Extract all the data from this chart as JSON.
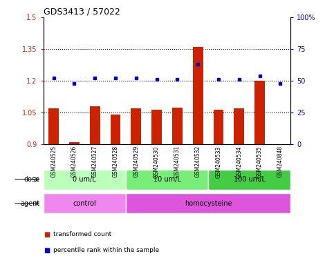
{
  "title": "GDS3413 / 57022",
  "samples": [
    "GSM240525",
    "GSM240526",
    "GSM240527",
    "GSM240528",
    "GSM240529",
    "GSM240530",
    "GSM240531",
    "GSM240532",
    "GSM240533",
    "GSM240534",
    "GSM240535",
    "GSM240848"
  ],
  "red_values": [
    1.07,
    0.91,
    1.08,
    1.04,
    1.07,
    1.065,
    1.075,
    1.36,
    1.065,
    1.07,
    1.2,
    0.9
  ],
  "blue_values": [
    52,
    48,
    52,
    52,
    52,
    51,
    51,
    63,
    51,
    51,
    54,
    48
  ],
  "ylim_left": [
    0.9,
    1.5
  ],
  "ylim_right": [
    0,
    100
  ],
  "yticks_left": [
    0.9,
    1.05,
    1.2,
    1.35,
    1.5
  ],
  "yticks_right": [
    0,
    25,
    50,
    75,
    100
  ],
  "ytick_labels_left": [
    "0.9",
    "1.05",
    "1.2",
    "1.35",
    "1.5"
  ],
  "ytick_labels_right": [
    "0",
    "25",
    "50",
    "75",
    "100%"
  ],
  "hlines": [
    1.05,
    1.2,
    1.35
  ],
  "bar_color": "#cc2200",
  "dot_color": "#0000cc",
  "dose_groups": [
    {
      "text": "0 um/L",
      "start": 0,
      "end": 4,
      "color": "#bbffbb"
    },
    {
      "text": "10 um/L",
      "start": 4,
      "end": 8,
      "color": "#77ee77"
    },
    {
      "text": "100 um/L",
      "start": 8,
      "end": 12,
      "color": "#44cc44"
    }
  ],
  "agent_groups": [
    {
      "text": "control",
      "start": 0,
      "end": 4,
      "color": "#ee88ee"
    },
    {
      "text": "homocysteine",
      "start": 4,
      "end": 12,
      "color": "#dd55dd"
    }
  ],
  "dose_row_label": "dose",
  "agent_row_label": "agent",
  "legend_red": "transformed count",
  "legend_blue": "percentile rank within the sample",
  "background_color": "#ffffff"
}
